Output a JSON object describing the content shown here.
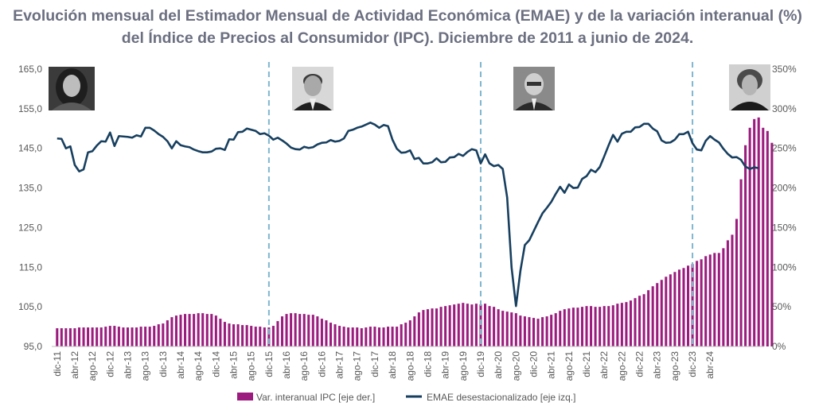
{
  "title": {
    "line1": "Evolución mensual del Estimador Mensual de Actividad Económica (EMAE) y de la variación interanual (%)",
    "line2": "del Índice de Precios al Consumidor (IPC). Diciembre de 2011 a junio de 2024."
  },
  "colors": {
    "bars": "#9b1c7e",
    "line": "#173f5f",
    "divider": "#7fb6cf",
    "axis_text": "#595959",
    "title": "#6b6f80"
  },
  "icons": [
    "president-portrait-1",
    "president-portrait-2",
    "president-portrait-3",
    "president-portrait-4"
  ],
  "chart_data": {
    "type": "bar+line",
    "x_tick_labels": [
      "dic-11",
      "abr-12",
      "ago-12",
      "dic-12",
      "abr-13",
      "ago-13",
      "dic-13",
      "abr-14",
      "ago-14",
      "dic-14",
      "abr-15",
      "ago-15",
      "dic-15",
      "abr-16",
      "ago-16",
      "dic-16",
      "abr-17",
      "ago-17",
      "dic-17",
      "abr-18",
      "ago-18",
      "dic-18",
      "abr-19",
      "ago-19",
      "dic-19",
      "abr-20",
      "ago-20",
      "dic-20",
      "abr-21",
      "ago-21",
      "dic-21",
      "abr-22",
      "ago-22",
      "dic-22",
      "abr-23",
      "ago-23",
      "dic-23",
      "abr-24"
    ],
    "y_left": {
      "ticks": [
        "95,0",
        "105,0",
        "115,0",
        "125,0",
        "135,0",
        "145,0",
        "155,0",
        "165,0"
      ],
      "ylim": [
        95,
        165
      ]
    },
    "y_right": {
      "ticks": [
        "0%",
        "50%",
        "100%",
        "150%",
        "200%",
        "250%",
        "300%",
        "350%"
      ],
      "ylim": [
        0,
        350
      ]
    },
    "dividers": [
      "dic-15",
      "dic-19",
      "dic-23"
    ],
    "series": [
      {
        "name": "Var. interanual IPC [eje der.]",
        "type": "bar",
        "axis": "right",
        "values": [
          23,
          23,
          23,
          23,
          23,
          24,
          24,
          24,
          24,
          24,
          24,
          25,
          26,
          26,
          25,
          24,
          24,
          24,
          24,
          25,
          25,
          25,
          26,
          28,
          29,
          33,
          37,
          39,
          40,
          41,
          41,
          41,
          42,
          42,
          41,
          41,
          39,
          35,
          31,
          29,
          28,
          28,
          27,
          27,
          26,
          25,
          25,
          24,
          24,
          26,
          32,
          38,
          41,
          42,
          42,
          41,
          41,
          40,
          40,
          38,
          35,
          33,
          30,
          28,
          26,
          25,
          24,
          24,
          24,
          23,
          24,
          25,
          25,
          24,
          24,
          25,
          25,
          25,
          28,
          30,
          33,
          38,
          43,
          46,
          47,
          48,
          48,
          50,
          51,
          52,
          53,
          54,
          55,
          54,
          53,
          54,
          53,
          54,
          51,
          50,
          47,
          45,
          44,
          43,
          42,
          39,
          38,
          37,
          36,
          35,
          37,
          38,
          40,
          42,
          45,
          47,
          48,
          49,
          49,
          50,
          51,
          51,
          50,
          50,
          51,
          51,
          52,
          54,
          55,
          56,
          58,
          61,
          64,
          66,
          71,
          76,
          80,
          84,
          88,
          91,
          94,
          97,
          99,
          102,
          104,
          108,
          110,
          114,
          116,
          118,
          118,
          124,
          134,
          141,
          161,
          211,
          254,
          276,
          287,
          289,
          276,
          272,
          257
        ]
      },
      {
        "name": "EMAE desestacionalizado [eje izq.]",
        "type": "line",
        "axis": "left",
        "values": [
          147.5,
          147.4,
          145.0,
          145.5,
          140.8,
          139.2,
          139.7,
          144.0,
          144.3,
          145.7,
          146.8,
          146.7,
          149.0,
          145.6,
          148.1,
          148.0,
          147.9,
          147.7,
          148.3,
          148.0,
          150.2,
          150.2,
          149.5,
          148.6,
          147.9,
          146.8,
          145.0,
          146.8,
          145.8,
          145.5,
          145.3,
          144.7,
          144.3,
          144.0,
          144.0,
          144.2,
          144.9,
          145.0,
          144.6,
          147.3,
          147.2,
          149.1,
          149.2,
          150.0,
          149.7,
          149.4,
          148.6,
          148.8,
          148.2,
          147.2,
          147.7,
          147.0,
          146.2,
          145.2,
          144.8,
          144.7,
          145.4,
          145.1,
          145.3,
          146.0,
          146.4,
          146.5,
          147.1,
          146.7,
          146.9,
          147.5,
          149.4,
          149.7,
          150.2,
          150.5,
          151.0,
          151.5,
          151.0,
          150.2,
          150.9,
          150.6,
          147.2,
          144.9,
          143.9,
          144.0,
          144.5,
          142.3,
          142.6,
          141.2,
          141.2,
          141.5,
          142.5,
          141.5,
          141.6,
          142.7,
          142.8,
          143.6,
          143.1,
          144.1,
          144.8,
          144.5,
          141.2,
          143.5,
          141.2,
          140.5,
          140.8,
          139.8,
          132.6,
          114.9,
          105.2,
          114.1,
          120.6,
          121.8,
          124.1,
          126.4,
          128.6,
          130.0,
          131.5,
          133.5,
          135.3,
          133.8,
          135.9,
          135.0,
          135.1,
          137.3,
          138.0,
          139.6,
          139.0,
          140.3,
          143.0,
          145.8,
          148.4,
          146.7,
          148.7,
          149.2,
          149.2,
          150.3,
          150.4,
          151.2,
          151.2,
          150.0,
          149.3,
          147.0,
          146.4,
          146.5,
          147.2,
          148.6,
          148.6,
          149.2,
          146.3,
          144.7,
          144.5,
          146.9,
          148.1,
          147.2,
          146.5,
          144.9,
          143.6,
          142.7,
          142.8,
          142.1,
          140.4,
          139.8,
          140.2,
          140.0
        ]
      }
    ],
    "legend_position": "bottom",
    "grid": false
  }
}
